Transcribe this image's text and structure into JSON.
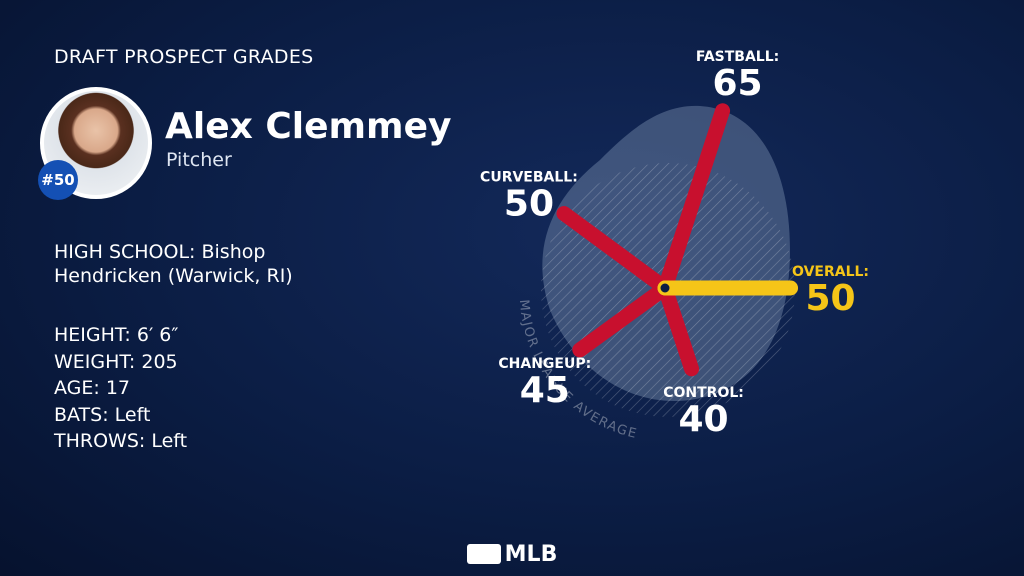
{
  "header": {
    "title": "DRAFT PROSPECT GRADES"
  },
  "player": {
    "name": "Alex Clemmey",
    "position": "Pitcher",
    "rank": "#50",
    "school": "HIGH SCHOOL: Bishop Hendricken (Warwick, RI)",
    "details": [
      "HEIGHT: 6′ 6″",
      "WEIGHT: 205",
      "AGE: 17",
      "BATS: Left",
      "THROWS: Left"
    ]
  },
  "chart_data": {
    "type": "radial",
    "categories": [
      "FASTBALL:",
      "CURVEBALL:",
      "CHANGEUP:",
      "CONTROL:",
      "OVERALL:"
    ],
    "values": [
      65,
      50,
      45,
      40,
      50
    ],
    "colors": [
      "#c8102e",
      "#c8102e",
      "#c8102e",
      "#c8102e",
      "#f5c518"
    ],
    "annotation": "MAJOR LEAGUE AVERAGE"
  },
  "footer": {
    "logo": "MLB"
  }
}
